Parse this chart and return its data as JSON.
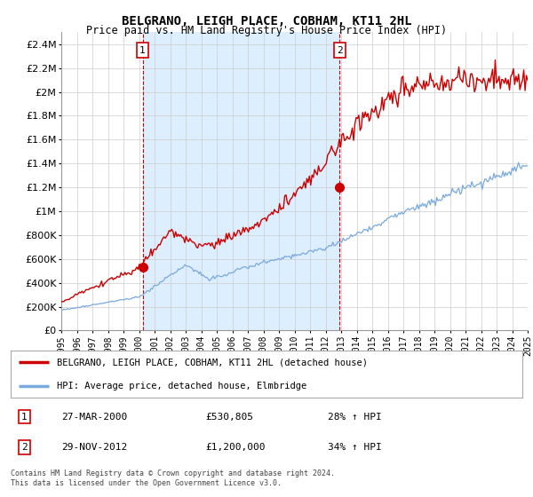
{
  "title": "BELGRANO, LEIGH PLACE, COBHAM, KT11 2HL",
  "subtitle": "Price paid vs. HM Land Registry's House Price Index (HPI)",
  "ylim": [
    0,
    2500000
  ],
  "xlim_start": 1995.0,
  "xlim_end": 2025.0,
  "red_line_color": "#cc0000",
  "blue_line_color": "#7aaadd",
  "shade_color": "#ddeeff",
  "marker1_x": 2000.23,
  "marker1_y": 530805,
  "marker2_x": 2012.91,
  "marker2_y": 1200000,
  "legend_red_label": "BELGRANO, LEIGH PLACE, COBHAM, KT11 2HL (detached house)",
  "legend_blue_label": "HPI: Average price, detached house, Elmbridge",
  "table_row1": [
    "1",
    "27-MAR-2000",
    "£530,805",
    "28% ↑ HPI"
  ],
  "table_row2": [
    "2",
    "29-NOV-2012",
    "£1,200,000",
    "34% ↑ HPI"
  ],
  "footer": "Contains HM Land Registry data © Crown copyright and database right 2024.\nThis data is licensed under the Open Government Licence v3.0.",
  "dashed_line1_x": 2000.23,
  "dashed_line2_x": 2012.91,
  "background_color": "#ffffff",
  "grid_color": "#cccccc"
}
